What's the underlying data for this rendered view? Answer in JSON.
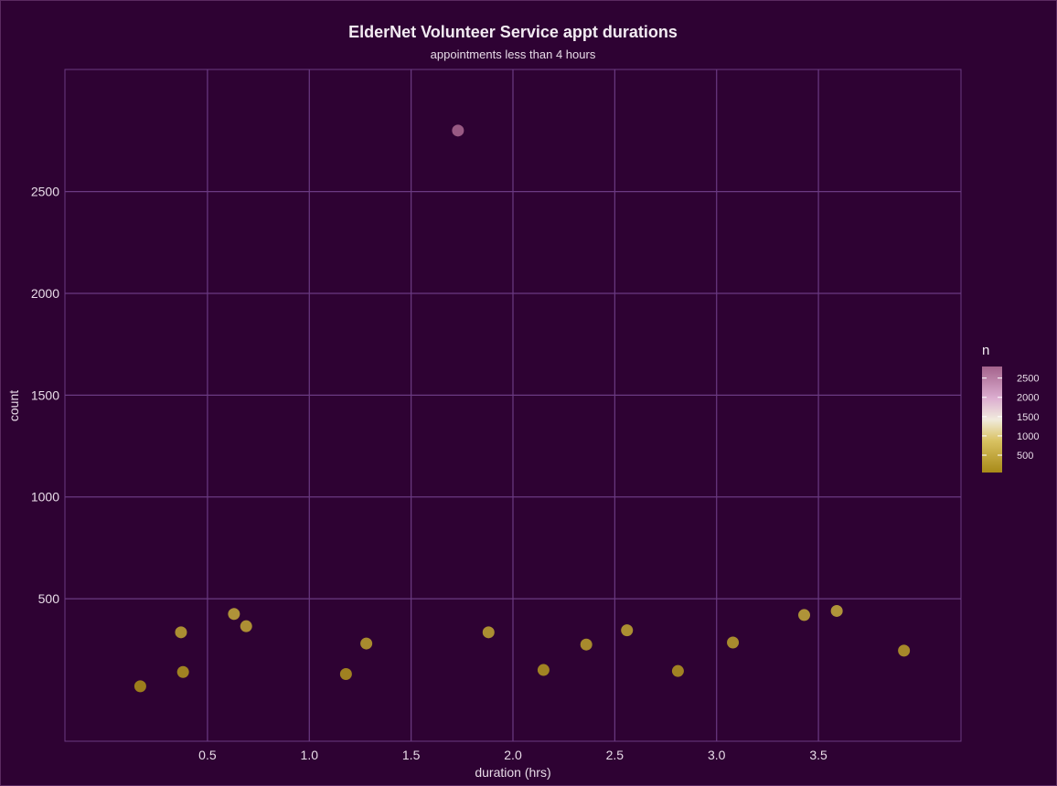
{
  "chart_data": {
    "type": "scatter",
    "title": "ElderNet Volunteer Service appt durations",
    "subtitle": "appointments less than 4 hours",
    "xlabel": "duration (hrs)",
    "ylabel": "count",
    "xlim": [
      -0.2,
      4.2
    ],
    "ylim": [
      -200,
      3100
    ],
    "x_ticks": [
      0.5,
      1.0,
      1.5,
      2.0,
      2.5,
      3.0,
      3.5
    ],
    "x_tick_labels": [
      "0.5",
      "1.0",
      "1.5",
      "2.0",
      "2.5",
      "3.0",
      "3.5"
    ],
    "y_ticks": [
      500,
      1000,
      1500,
      2000,
      2500
    ],
    "y_tick_labels": [
      "500",
      "1000",
      "1500",
      "2000",
      "2500"
    ],
    "grid": true,
    "legend": {
      "title": "n",
      "placement": "right",
      "min": 50,
      "max": 2800,
      "ticks": [
        500,
        1000,
        1500,
        2000,
        2500
      ],
      "tick_labels": [
        "500",
        "1000",
        "1500",
        "2000",
        "2500"
      ]
    },
    "points": [
      {
        "x": 0.17,
        "y": 70
      },
      {
        "x": 0.37,
        "y": 335
      },
      {
        "x": 0.38,
        "y": 140
      },
      {
        "x": 0.63,
        "y": 425
      },
      {
        "x": 0.69,
        "y": 365
      },
      {
        "x": 1.18,
        "y": 130
      },
      {
        "x": 1.28,
        "y": 280
      },
      {
        "x": 1.73,
        "y": 2800
      },
      {
        "x": 1.88,
        "y": 335
      },
      {
        "x": 2.15,
        "y": 150
      },
      {
        "x": 2.36,
        "y": 275
      },
      {
        "x": 2.56,
        "y": 345
      },
      {
        "x": 2.81,
        "y": 145
      },
      {
        "x": 3.08,
        "y": 285
      },
      {
        "x": 3.43,
        "y": 420
      },
      {
        "x": 3.59,
        "y": 440
      },
      {
        "x": 3.92,
        "y": 245
      }
    ]
  },
  "colors": {
    "background": "#2e0233",
    "grid": "#6a3a82",
    "low": "#b08f1a",
    "mid_low": "#d6bf5c",
    "mid": "#efe8d8",
    "mid_high": "#d8a8cc",
    "high": "#a4638c"
  }
}
